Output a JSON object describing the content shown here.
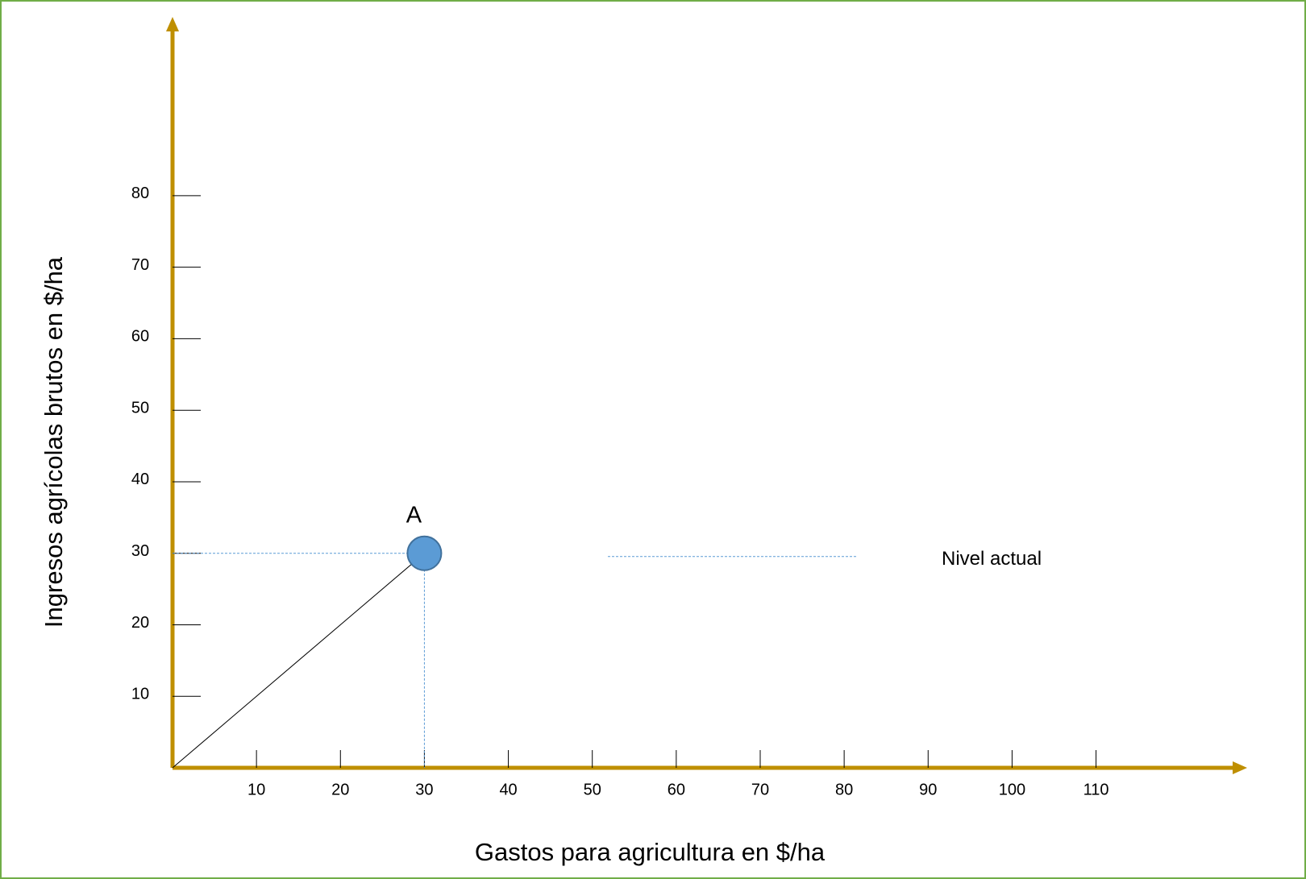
{
  "chart_data": {
    "type": "scatter",
    "x_label": "Gastos para agricultura en $/ha",
    "y_label": "Ingresos agrícolas brutos en $/ha",
    "x": [
      30
    ],
    "values": [
      30
    ],
    "labels": [
      "A"
    ],
    "color": "#5b9bd5",
    "axis_color": "#bf8f00",
    "annotation": "Nivel actual",
    "xlim": [
      0,
      128
    ],
    "ylim": [
      0,
      105
    ],
    "xticks": [
      10,
      20,
      30,
      40,
      50,
      60,
      70,
      80,
      90,
      100,
      110
    ],
    "yticks": [
      10,
      20,
      30,
      40,
      50,
      60,
      70,
      80
    ]
  }
}
